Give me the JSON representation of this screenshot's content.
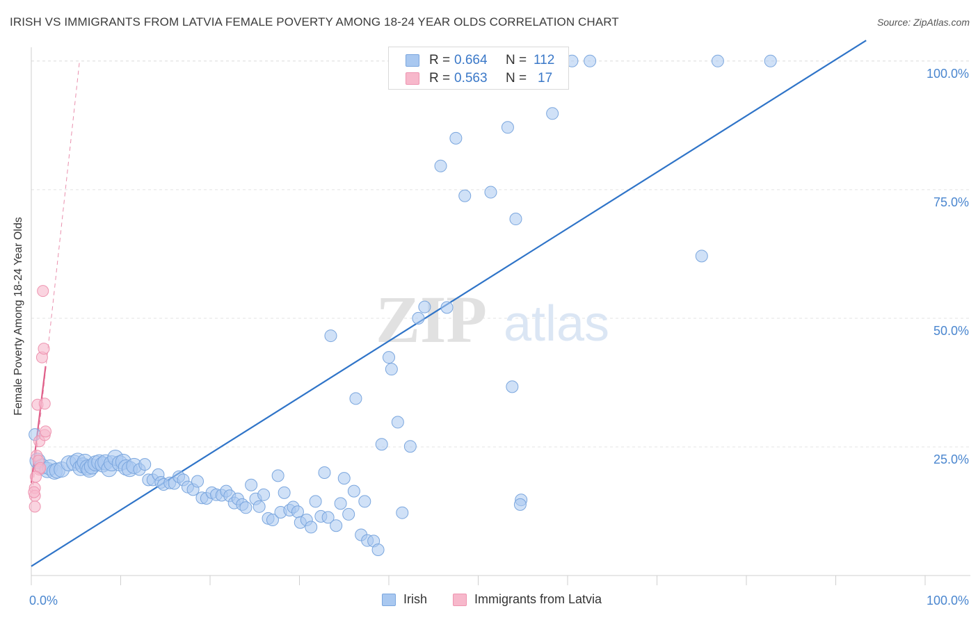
{
  "header": {
    "title": "IRISH VS IMMIGRANTS FROM LATVIA FEMALE POVERTY AMONG 18-24 YEAR OLDS CORRELATION CHART",
    "source": "Source: ZipAtlas.com"
  },
  "watermark": {
    "zip": "ZIP",
    "atlas": "atlas"
  },
  "legend": {
    "series": [
      {
        "r_label": "R =",
        "r_value": "0.664",
        "n_label": "N =",
        "n_value": "112"
      },
      {
        "r_label": "R =",
        "r_value": "0.563",
        "n_label": "N =",
        "n_value": "17"
      }
    ]
  },
  "colors": {
    "irish_fill": "#a9c8f0",
    "irish_stroke": "#7aa6de",
    "irish_line": "#2f74c8",
    "latvia_fill": "#f7b8cb",
    "latvia_stroke": "#ee94b0",
    "latvia_line": "#e0608a",
    "grid": "#e3e3e3",
    "tick_label": "#4a86cf"
  },
  "chart_data": {
    "type": "scatter",
    "title": "IRISH VS IMMIGRANTS FROM LATVIA FEMALE POVERTY AMONG 18-24 YEAR OLDS CORRELATION CHART",
    "xlabel": "",
    "ylabel": "Female Poverty Among 18-24 Year Olds",
    "xlim": [
      0,
      100
    ],
    "ylim": [
      0,
      102
    ],
    "x_tick_labels": [
      "0.0%",
      "100.0%"
    ],
    "y_ticks": [
      25,
      50,
      75,
      100
    ],
    "y_tick_labels": [
      "25.0%",
      "50.0%",
      "75.0%",
      "100.0%"
    ],
    "grid": true,
    "legend_position": "top-center",
    "series": [
      {
        "name": "Irish",
        "color": "#a9c8f0",
        "trend": {
          "x": [
            0,
            93.4
          ],
          "y": [
            1.8,
            104
          ]
        },
        "points": [
          [
            0.4,
            27.4
          ],
          [
            0.7,
            22.3
          ],
          [
            1.2,
            21.2
          ],
          [
            1.8,
            20.5
          ],
          [
            2.1,
            21.0
          ],
          [
            2.6,
            20.2
          ],
          [
            2.9,
            20.4
          ],
          [
            3.4,
            20.6
          ],
          [
            4.2,
            21.8
          ],
          [
            4.8,
            21.9
          ],
          [
            5.2,
            22.3
          ],
          [
            5.5,
            20.9
          ],
          [
            5.8,
            21.4
          ],
          [
            6.0,
            22.1
          ],
          [
            6.3,
            21.0
          ],
          [
            6.5,
            20.6
          ],
          [
            6.8,
            21.2
          ],
          [
            7.2,
            21.8
          ],
          [
            7.6,
            22.0
          ],
          [
            8.0,
            21.6
          ],
          [
            8.3,
            22.0
          ],
          [
            8.7,
            20.7
          ],
          [
            9.0,
            21.8
          ],
          [
            9.4,
            22.9
          ],
          [
            9.9,
            21.8
          ],
          [
            10.3,
            22.1
          ],
          [
            10.6,
            21.0
          ],
          [
            11.0,
            20.7
          ],
          [
            11.5,
            21.3
          ],
          [
            12.1,
            20.6
          ],
          [
            12.7,
            21.6
          ],
          [
            13.1,
            18.6
          ],
          [
            13.6,
            18.6
          ],
          [
            14.2,
            19.6
          ],
          [
            14.5,
            18.1
          ],
          [
            14.8,
            17.7
          ],
          [
            15.5,
            18.0
          ],
          [
            16.0,
            17.9
          ],
          [
            16.5,
            19.2
          ],
          [
            17.0,
            18.6
          ],
          [
            17.5,
            17.2
          ],
          [
            18.1,
            16.7
          ],
          [
            18.6,
            18.3
          ],
          [
            19.1,
            15.1
          ],
          [
            19.6,
            15.0
          ],
          [
            20.2,
            16.1
          ],
          [
            20.7,
            15.7
          ],
          [
            21.3,
            15.6
          ],
          [
            21.8,
            16.4
          ],
          [
            22.2,
            15.5
          ],
          [
            22.7,
            14.1
          ],
          [
            23.1,
            14.9
          ],
          [
            23.6,
            13.8
          ],
          [
            24.0,
            13.2
          ],
          [
            24.6,
            17.6
          ],
          [
            25.1,
            14.9
          ],
          [
            25.5,
            13.4
          ],
          [
            26.0,
            15.7
          ],
          [
            26.5,
            11.1
          ],
          [
            27.0,
            10.8
          ],
          [
            27.6,
            19.4
          ],
          [
            27.9,
            12.3
          ],
          [
            28.3,
            16.1
          ],
          [
            28.9,
            12.7
          ],
          [
            29.3,
            13.3
          ],
          [
            29.8,
            12.4
          ],
          [
            30.1,
            10.3
          ],
          [
            30.8,
            10.8
          ],
          [
            31.3,
            9.4
          ],
          [
            31.8,
            14.4
          ],
          [
            32.4,
            11.5
          ],
          [
            32.8,
            20.0
          ],
          [
            33.2,
            11.3
          ],
          [
            34.1,
            9.7
          ],
          [
            34.6,
            14.0
          ],
          [
            35.0,
            18.9
          ],
          [
            35.5,
            11.9
          ],
          [
            36.1,
            16.4
          ],
          [
            36.9,
            7.9
          ],
          [
            37.3,
            14.4
          ],
          [
            37.6,
            6.8
          ],
          [
            38.3,
            6.7
          ],
          [
            38.8,
            5.0
          ],
          [
            33.5,
            46.6
          ],
          [
            36.3,
            34.4
          ],
          [
            39.2,
            25.5
          ],
          [
            40.0,
            42.4
          ],
          [
            40.3,
            40.1
          ],
          [
            41.0,
            29.8
          ],
          [
            41.5,
            12.2
          ],
          [
            42.4,
            25.1
          ],
          [
            43.3,
            50.0
          ],
          [
            44.0,
            52.2
          ],
          [
            45.8,
            79.6
          ],
          [
            46.5,
            52.1
          ],
          [
            47.5,
            85.0
          ],
          [
            48.5,
            73.8
          ],
          [
            51.4,
            74.5
          ],
          [
            53.3,
            87.1
          ],
          [
            53.8,
            36.7
          ],
          [
            54.2,
            69.3
          ],
          [
            54.8,
            14.7
          ],
          [
            54.7,
            13.8
          ],
          [
            58.3,
            89.8
          ],
          [
            60.5,
            100
          ],
          [
            62.5,
            100
          ],
          [
            75.0,
            62.1
          ],
          [
            76.8,
            100
          ],
          [
            82.7,
            100
          ],
          [
            45.4,
            100
          ],
          [
            50.6,
            100
          ],
          [
            56.3,
            100
          ]
        ]
      },
      {
        "name": "Immigrants from Latvia",
        "color": "#f7b8cb",
        "trend": {
          "x": [
            0,
            1.6
          ],
          "y": [
            18.0,
            40.7
          ]
        },
        "trend_extended": {
          "x": [
            0,
            5.4
          ],
          "y": [
            14.6,
            100
          ]
        },
        "points": [
          [
            0.6,
            23.3
          ],
          [
            0.7,
            33.2
          ],
          [
            0.8,
            22.3
          ],
          [
            0.9,
            26.1
          ],
          [
            0.9,
            20.6
          ],
          [
            1.0,
            20.9
          ],
          [
            1.2,
            42.4
          ],
          [
            1.3,
            55.3
          ],
          [
            1.4,
            44.1
          ],
          [
            1.5,
            27.3
          ],
          [
            1.5,
            33.4
          ],
          [
            1.6,
            28.0
          ],
          [
            0.5,
            19.2
          ],
          [
            0.4,
            17.0
          ],
          [
            0.4,
            15.5
          ],
          [
            0.3,
            16.2
          ],
          [
            0.4,
            13.4
          ]
        ]
      }
    ]
  },
  "bottom_legend": [
    "Irish",
    "Immigrants from Latvia"
  ]
}
